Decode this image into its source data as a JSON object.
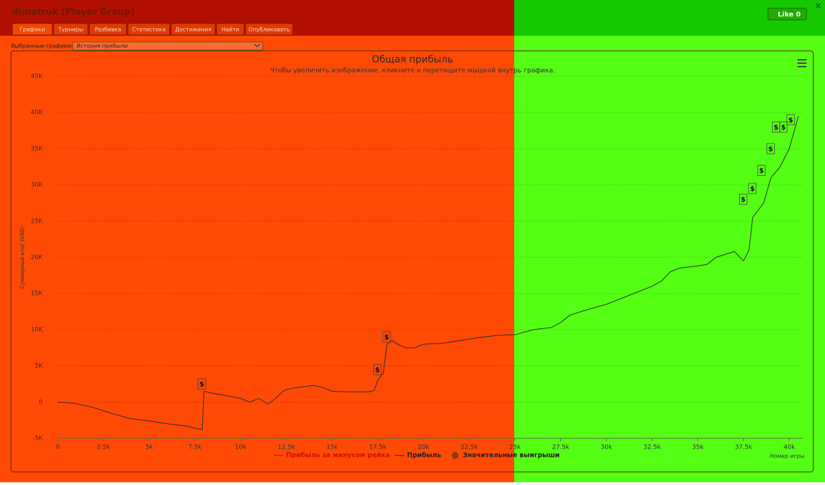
{
  "header": {
    "title": "dimatruk (Player Group)",
    "like": "Like 0"
  },
  "tabs": [
    "Графики",
    "Турниры",
    "Разбивка",
    "Статистика",
    "Достижения",
    "Найти",
    "Опубликовать"
  ],
  "selector": {
    "label": "Выбранные графики:",
    "value": "История прибыли"
  },
  "chart_data": {
    "type": "line",
    "title": "Общая прибыль",
    "subtitle": "Чтобы увеличить изображение, кликните и перетащите мышкой внутрь графика.",
    "y_label": "Суммарный итог (USD)",
    "x_label": "Номер игры",
    "grid": true,
    "xlim": [
      0,
      40000
    ],
    "ylim": [
      -5000,
      45000
    ],
    "xticks": [
      0,
      {
        "value": 2500,
        "label": "2.5k"
      },
      {
        "value": 5000,
        "label": "5k"
      },
      {
        "value": 7500,
        "label": "7.5k"
      },
      {
        "value": 10000,
        "label": "10k"
      },
      {
        "value": 12500,
        "label": "12.5k"
      },
      {
        "value": 15000,
        "label": "15k"
      },
      {
        "value": 17500,
        "label": "17.5k"
      },
      {
        "value": 20000,
        "label": "20k"
      },
      {
        "value": 22500,
        "label": "22.5k"
      },
      {
        "value": 25000,
        "label": "25k"
      },
      {
        "value": 27500,
        "label": "27.5k"
      },
      {
        "value": 30000,
        "label": "30k"
      },
      {
        "value": 32500,
        "label": "32.5k"
      },
      {
        "value": 35000,
        "label": "35k"
      },
      {
        "value": 37500,
        "label": "37.5k"
      },
      {
        "value": 40000,
        "label": "40k"
      }
    ],
    "yticks": [
      {
        "value": -5000,
        "label": "-5K"
      },
      0,
      {
        "value": 5000,
        "label": "5K"
      },
      {
        "value": 10000,
        "label": "10K"
      },
      {
        "value": 15000,
        "label": "15K"
      },
      {
        "value": 20000,
        "label": "20K"
      },
      {
        "value": 25000,
        "label": "25K"
      },
      {
        "value": 30000,
        "label": "30K"
      },
      {
        "value": 35000,
        "label": "35K"
      },
      {
        "value": 40000,
        "label": "40K"
      },
      {
        "value": 45000,
        "label": "45K"
      }
    ],
    "marker_label": "$",
    "series": [
      {
        "name": "Прибыль за минусом рейка",
        "color": "#c81400"
      },
      {
        "name": "Прибыль",
        "color": "#2b2b2b",
        "x": [
          0,
          1000,
          2000,
          2500,
          3000,
          4000,
          5000,
          6000,
          7000,
          7500,
          7900,
          8000,
          8500,
          9000,
          10000,
          10500,
          11000,
          11500,
          12000,
          12300,
          12500,
          13000,
          14000,
          14500,
          15000,
          16000,
          17000,
          17300,
          17500,
          17800,
          18000,
          18300,
          18500,
          19000,
          19500,
          20000,
          21000,
          22000,
          22500,
          23000,
          24000,
          25000,
          26000,
          27000,
          27500,
          28000,
          29000,
          30000,
          31000,
          32000,
          32500,
          33000,
          33500,
          34000,
          35000,
          35500,
          36000,
          37000,
          37500,
          37800,
          38000,
          38300,
          38600,
          39000,
          39500,
          40000,
          40500
        ],
        "values": [
          0,
          -200,
          -800,
          -1200,
          -1600,
          -2300,
          -2600,
          -3000,
          -3300,
          -3600,
          -3800,
          1500,
          1200,
          1000,
          500,
          0,
          500,
          -300,
          700,
          1500,
          1700,
          2000,
          2300,
          2000,
          1500,
          1400,
          1400,
          1600,
          3000,
          4000,
          8000,
          8500,
          8100,
          7500,
          7500,
          8000,
          8100,
          8500,
          8700,
          8900,
          9200,
          9300,
          10000,
          10300,
          11000,
          12000,
          12800,
          13500,
          14500,
          15500,
          16000,
          16700,
          18000,
          18500,
          18800,
          19000,
          20000,
          20800,
          19500,
          21000,
          25500,
          26500,
          27500,
          31000,
          32500,
          35000,
          39500
        ]
      },
      {
        "name": "Значительные выигрыши",
        "color": "#8a3a10",
        "x": [
          7900,
          17500,
          18000,
          37500,
          38000,
          38500,
          39000,
          39300,
          39700,
          40100
        ],
        "values": [
          1500,
          3500,
          8000,
          27000,
          28500,
          31000,
          34000,
          37000,
          37000,
          38000
        ]
      }
    ]
  }
}
